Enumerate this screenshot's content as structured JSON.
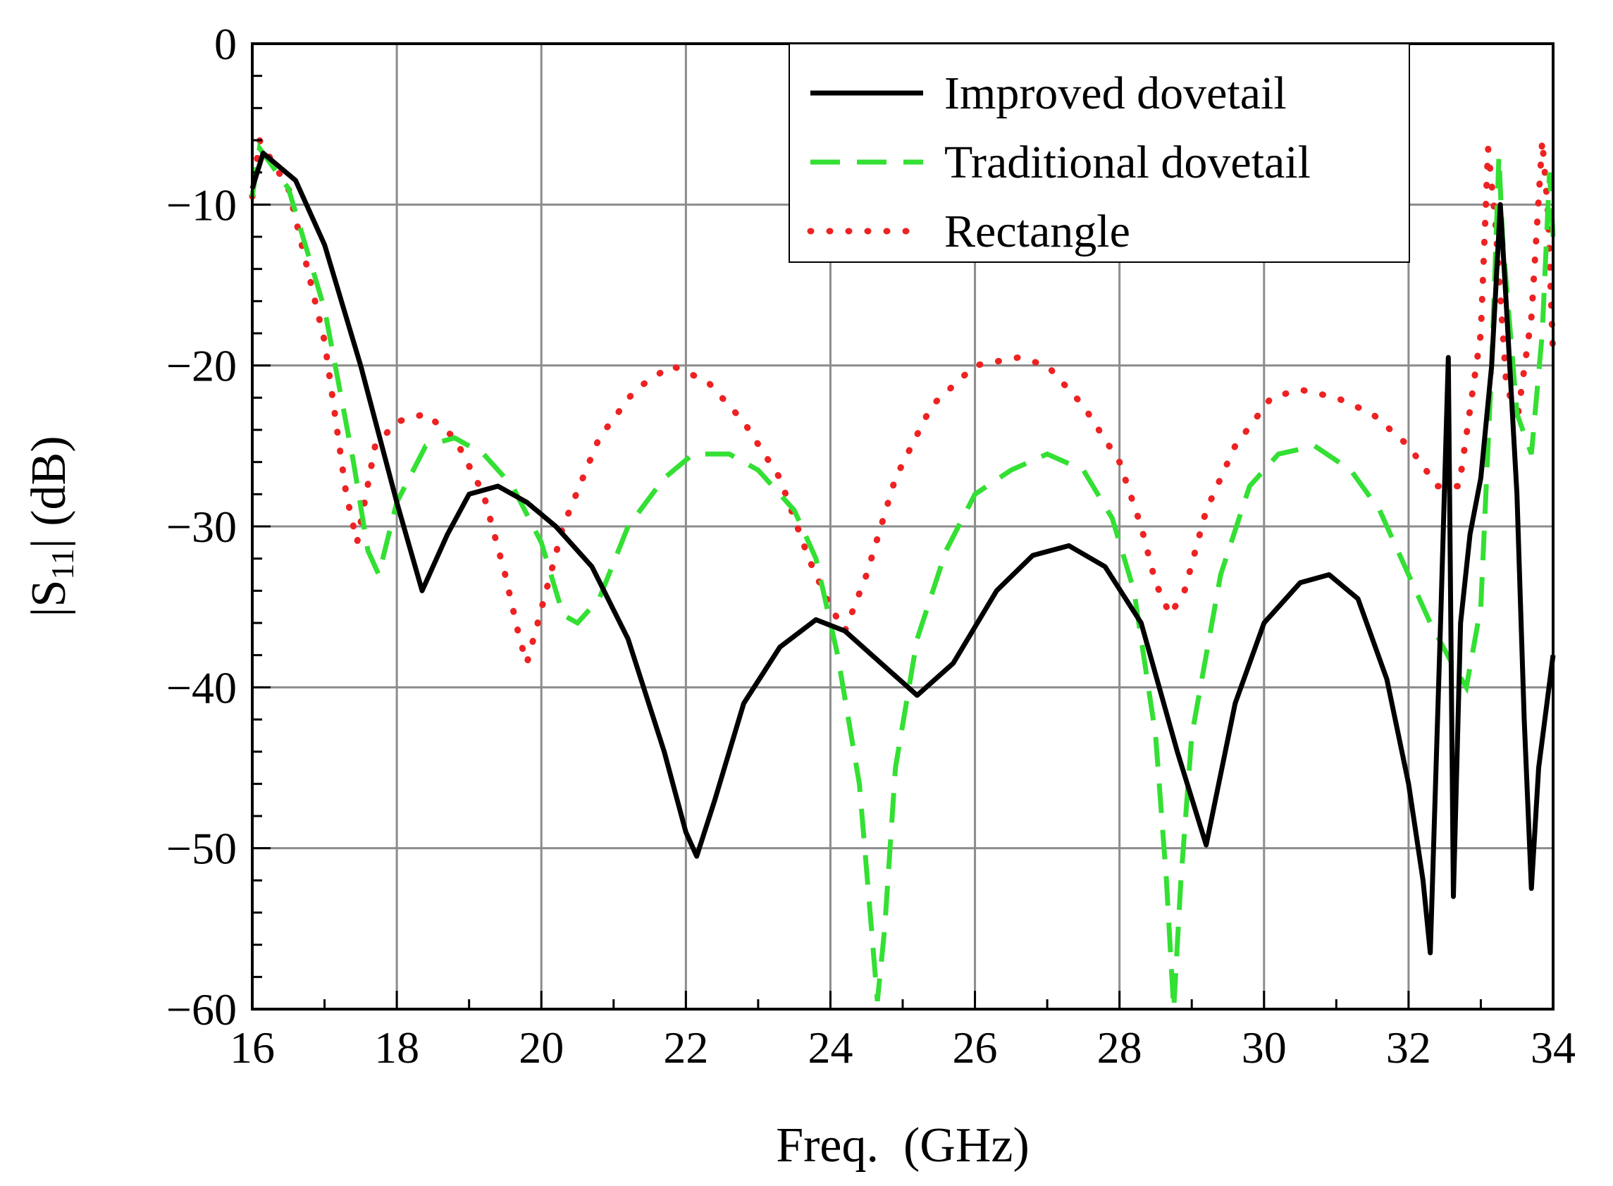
{
  "chart_data": {
    "type": "line",
    "title": "",
    "xlabel": "Freq.  (GHz)",
    "ylabel_main": "|S",
    "ylabel_sub": "11",
    "ylabel_tail": "| (dB)",
    "xlim": [
      16,
      34
    ],
    "ylim": [
      -60,
      0
    ],
    "xticks": [
      16,
      18,
      20,
      22,
      24,
      26,
      28,
      30,
      32,
      34
    ],
    "yticks": [
      0,
      -10,
      -20,
      -30,
      -40,
      -50,
      -60
    ],
    "xtick_labels": [
      "16",
      "18",
      "20",
      "22",
      "24",
      "26",
      "28",
      "30",
      "32",
      "34"
    ],
    "ytick_labels": [
      "0",
      "−10",
      "−20",
      "−30",
      "−40",
      "−50",
      "−60"
    ],
    "grid": true,
    "legend_position": "top-right",
    "series": [
      {
        "name": "Improved dovetail",
        "color": "#000000",
        "style": "solid",
        "x": [
          16.0,
          16.15,
          16.6,
          17.0,
          17.5,
          18.0,
          18.35,
          18.7,
          19.0,
          19.4,
          19.8,
          20.2,
          20.7,
          21.2,
          21.7,
          22.0,
          22.15,
          22.4,
          22.8,
          23.3,
          23.8,
          24.2,
          24.7,
          25.2,
          25.7,
          26.3,
          26.8,
          27.3,
          27.8,
          28.3,
          28.8,
          29.2,
          29.6,
          30.0,
          30.5,
          30.9,
          31.3,
          31.7,
          32.0,
          32.2,
          32.3,
          32.45,
          32.55,
          32.62,
          32.72,
          32.85,
          33.0,
          33.15,
          33.27,
          33.35,
          33.5,
          33.6,
          33.7,
          33.8,
          34.0
        ],
        "y": [
          -9.0,
          -6.8,
          -8.5,
          -12.5,
          -20.0,
          -28.5,
          -34.0,
          -30.5,
          -28.0,
          -27.5,
          -28.5,
          -30.0,
          -32.5,
          -37.0,
          -44.0,
          -49.0,
          -50.5,
          -47.0,
          -41.0,
          -37.5,
          -35.8,
          -36.5,
          -38.5,
          -40.5,
          -38.5,
          -34.0,
          -31.8,
          -31.2,
          -32.5,
          -36.0,
          -44.0,
          -49.8,
          -41.0,
          -36.0,
          -33.5,
          -33.0,
          -34.5,
          -39.5,
          -46.0,
          -52.0,
          -56.5,
          -35.0,
          -19.5,
          -53.0,
          -36.0,
          -30.5,
          -27.0,
          -20.0,
          -10.0,
          -16.0,
          -28.0,
          -42.0,
          -52.5,
          -45.0,
          -38.0
        ]
      },
      {
        "name": "Traditional dovetail",
        "color": "#33e033",
        "style": "dashed",
        "x": [
          16.0,
          16.1,
          16.5,
          17.0,
          17.4,
          17.6,
          17.75,
          18.0,
          18.4,
          18.8,
          19.2,
          19.6,
          20.0,
          20.3,
          20.5,
          20.8,
          21.2,
          21.7,
          22.1,
          22.6,
          23.0,
          23.5,
          23.8,
          24.1,
          24.4,
          24.55,
          24.65,
          24.75,
          24.9,
          25.2,
          25.6,
          26.0,
          26.5,
          27.0,
          27.5,
          27.9,
          28.2,
          28.5,
          28.65,
          28.75,
          28.85,
          29.0,
          29.4,
          29.8,
          30.2,
          30.7,
          31.2,
          31.6,
          32.0,
          32.3,
          32.6,
          32.8,
          33.0,
          33.15,
          33.25,
          33.3,
          33.5,
          33.7,
          33.85,
          33.95,
          34.0
        ],
        "y": [
          -9.5,
          -6.5,
          -9.0,
          -16.5,
          -26.0,
          -31.5,
          -33.0,
          -28.5,
          -25.0,
          -24.5,
          -25.5,
          -27.5,
          -31.0,
          -35.5,
          -36.0,
          -34.5,
          -30.0,
          -27.0,
          -25.5,
          -25.5,
          -26.5,
          -29.0,
          -32.0,
          -38.0,
          -46.0,
          -54.0,
          -59.5,
          -55.0,
          -45.0,
          -37.0,
          -31.5,
          -28.0,
          -26.5,
          -25.5,
          -26.5,
          -29.5,
          -34.0,
          -43.0,
          -52.0,
          -60.0,
          -52.0,
          -43.0,
          -33.0,
          -27.5,
          -25.5,
          -25.0,
          -26.5,
          -29.0,
          -33.0,
          -36.0,
          -38.5,
          -40.0,
          -35.0,
          -20.0,
          -7.0,
          -12.0,
          -23.0,
          -25.5,
          -18.0,
          -8.0,
          -12.0
        ]
      },
      {
        "name": "Rectangle",
        "color": "#ee2222",
        "style": "dotted",
        "x": [
          16.0,
          16.1,
          16.5,
          17.0,
          17.3,
          17.45,
          17.7,
          18.0,
          18.4,
          18.8,
          19.2,
          19.5,
          19.7,
          19.8,
          19.95,
          20.3,
          20.8,
          21.3,
          21.8,
          22.3,
          22.8,
          23.3,
          23.7,
          24.0,
          24.2,
          24.5,
          24.9,
          25.4,
          26.0,
          26.6,
          27.0,
          27.5,
          28.0,
          28.3,
          28.5,
          28.7,
          28.9,
          29.2,
          29.6,
          30.1,
          30.5,
          31.0,
          31.5,
          32.0,
          32.4,
          32.7,
          33.0,
          33.1,
          33.2,
          33.35,
          33.5,
          33.7,
          33.85,
          33.93,
          34.0
        ],
        "y": [
          -9.5,
          -6.0,
          -9.0,
          -18.5,
          -28.0,
          -31.0,
          -25.0,
          -23.5,
          -23.0,
          -24.5,
          -28.0,
          -33.0,
          -37.0,
          -38.5,
          -36.0,
          -30.0,
          -24.5,
          -21.5,
          -20.0,
          -21.0,
          -23.5,
          -27.0,
          -32.0,
          -35.0,
          -36.5,
          -33.0,
          -27.0,
          -22.5,
          -20.0,
          -19.5,
          -20.0,
          -22.5,
          -26.0,
          -30.0,
          -33.5,
          -35.5,
          -34.0,
          -29.0,
          -25.0,
          -22.0,
          -21.5,
          -22.0,
          -23.0,
          -25.0,
          -27.5,
          -27.5,
          -18.0,
          -6.5,
          -11.0,
          -21.0,
          -23.5,
          -17.0,
          -6.0,
          -10.5,
          -19.5
        ]
      }
    ]
  }
}
